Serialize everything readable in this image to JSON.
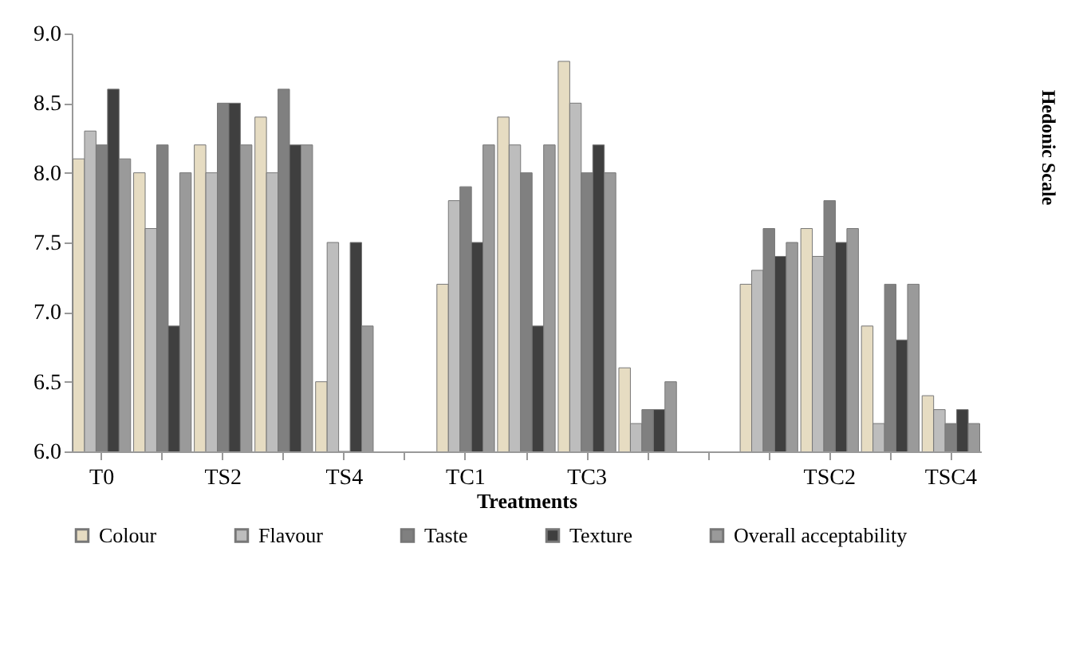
{
  "chart_data": {
    "type": "bar",
    "xlabel": "Treatments",
    "ylabel": "Hedonic Scale",
    "categories": [
      "T0",
      null,
      "TS2",
      null,
      "TS4",
      null,
      "TC1",
      null,
      "TC3",
      null,
      null,
      null,
      "TSC2",
      null,
      "TSC4"
    ],
    "series": [
      {
        "name": "Colour",
        "color": "#e6dcc2",
        "values": [
          8.1,
          8.0,
          8.2,
          8.4,
          6.5,
          null,
          7.2,
          8.4,
          8.8,
          6.6,
          null,
          7.2,
          7.6,
          6.9,
          6.4
        ]
      },
      {
        "name": "Flavour",
        "color": "#bdbdbd",
        "values": [
          8.3,
          7.6,
          8.0,
          8.0,
          7.5,
          null,
          7.8,
          8.2,
          8.5,
          6.2,
          null,
          7.3,
          7.4,
          6.2,
          6.3
        ]
      },
      {
        "name": "Taste",
        "color": "#808080",
        "values": [
          8.2,
          8.2,
          8.5,
          8.6,
          6.0,
          null,
          7.9,
          8.0,
          8.0,
          6.3,
          null,
          7.6,
          7.8,
          7.2,
          6.2
        ]
      },
      {
        "name": "Texture",
        "color": "#3f3f3f",
        "values": [
          8.6,
          6.9,
          8.5,
          8.2,
          7.5,
          null,
          7.5,
          6.9,
          8.2,
          6.3,
          null,
          7.4,
          7.5,
          6.8,
          6.3
        ]
      },
      {
        "name": "Overall acceptability",
        "color": "#9a9a9a",
        "values": [
          8.1,
          8.0,
          8.2,
          8.2,
          6.9,
          null,
          8.2,
          8.2,
          8.0,
          6.5,
          null,
          7.5,
          7.6,
          7.2,
          6.2
        ]
      }
    ],
    "ylim": [
      6,
      9
    ],
    "yticks": [
      {
        "value": 6,
        "label": "6.0"
      },
      {
        "value": 6.5,
        "label": "6.5"
      },
      {
        "value": 7,
        "label": "7.0"
      },
      {
        "value": 7.5,
        "label": "7.5"
      },
      {
        "value": 8,
        "label": "8.0"
      },
      {
        "value": 8.5,
        "label": "8.5"
      },
      {
        "value": 9,
        "label": "9.0"
      }
    ],
    "grid": false,
    "legend": "bottom"
  }
}
